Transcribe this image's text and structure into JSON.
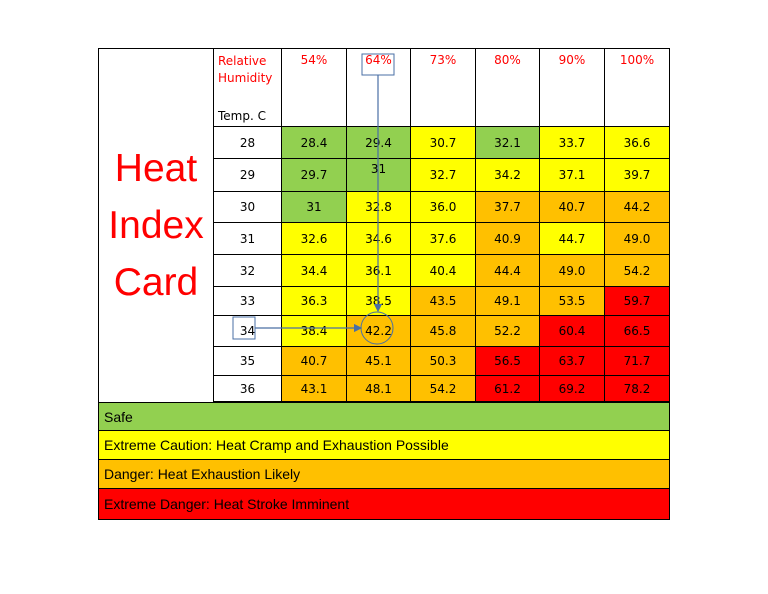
{
  "title_lines": [
    "Heat",
    "Index",
    "Card"
  ],
  "rh_label_lines": [
    "Relative",
    "Humidity"
  ],
  "temp_label": "Temp. C",
  "humidities": [
    "54%",
    "64%",
    "73%",
    "80%",
    "90%",
    "100%"
  ],
  "temps": [
    "28",
    "29",
    "30",
    "31",
    "32",
    "33",
    "34",
    "35",
    "36"
  ],
  "grid": [
    [
      {
        "v": "28.4",
        "c": "g"
      },
      {
        "v": "29.4",
        "c": "g"
      },
      {
        "v": "30.7",
        "c": "y"
      },
      {
        "v": "32.1",
        "c": "g"
      },
      {
        "v": "33.7",
        "c": "y"
      },
      {
        "v": "36.6",
        "c": "y"
      }
    ],
    [
      {
        "v": "29.7",
        "c": "g"
      },
      {
        "v": "31",
        "c": "g"
      },
      {
        "v": "32.7",
        "c": "y"
      },
      {
        "v": "34.2",
        "c": "y"
      },
      {
        "v": "37.1",
        "c": "y"
      },
      {
        "v": "39.7",
        "c": "y"
      }
    ],
    [
      {
        "v": "31",
        "c": "g"
      },
      {
        "v": "32.8",
        "c": "y"
      },
      {
        "v": "36.0",
        "c": "y"
      },
      {
        "v": "37.7",
        "c": "o"
      },
      {
        "v": "40.7",
        "c": "o"
      },
      {
        "v": "44.2",
        "c": "o"
      }
    ],
    [
      {
        "v": "32.6",
        "c": "y"
      },
      {
        "v": "34.6",
        "c": "y"
      },
      {
        "v": "37.6",
        "c": "y"
      },
      {
        "v": "40.9",
        "c": "o"
      },
      {
        "v": "44.7",
        "c": "y"
      },
      {
        "v": "49.0",
        "c": "o"
      }
    ],
    [
      {
        "v": "34.4",
        "c": "y"
      },
      {
        "v": "36.1",
        "c": "y"
      },
      {
        "v": "40.4",
        "c": "y"
      },
      {
        "v": "44.4",
        "c": "o"
      },
      {
        "v": "49.0",
        "c": "o"
      },
      {
        "v": "54.2",
        "c": "o"
      }
    ],
    [
      {
        "v": "36.3",
        "c": "y"
      },
      {
        "v": "38.5",
        "c": "y"
      },
      {
        "v": "43.5",
        "c": "o"
      },
      {
        "v": "49.1",
        "c": "o"
      },
      {
        "v": "53.5",
        "c": "o"
      },
      {
        "v": "59.7",
        "c": "r"
      }
    ],
    [
      {
        "v": "38.4",
        "c": "y"
      },
      {
        "v": "42.2",
        "c": "o"
      },
      {
        "v": "45.8",
        "c": "o"
      },
      {
        "v": "52.2",
        "c": "o"
      },
      {
        "v": "60.4",
        "c": "r"
      },
      {
        "v": "66.5",
        "c": "r"
      }
    ],
    [
      {
        "v": "40.7",
        "c": "o"
      },
      {
        "v": "45.1",
        "c": "o"
      },
      {
        "v": "50.3",
        "c": "o"
      },
      {
        "v": "56.5",
        "c": "r"
      },
      {
        "v": "63.7",
        "c": "r"
      },
      {
        "v": "71.7",
        "c": "r"
      }
    ],
    [
      {
        "v": "43.1",
        "c": "o"
      },
      {
        "v": "48.1",
        "c": "o"
      },
      {
        "v": "54.2",
        "c": "o"
      },
      {
        "v": "61.2",
        "c": "r"
      },
      {
        "v": "69.2",
        "c": "r"
      },
      {
        "v": "78.2",
        "c": "r"
      }
    ]
  ],
  "legend": [
    {
      "label": "Safe",
      "c": "g"
    },
    {
      "label": "Extreme Caution:  Heat Cramp and Exhaustion Possible",
      "c": "y"
    },
    {
      "label": "Danger: Heat Exhaustion Likely",
      "c": "o"
    },
    {
      "label": "Extreme Danger: Heat Stroke Imminent",
      "c": "r"
    }
  ],
  "colors": {
    "g": "#92d050",
    "y": "#ffff00",
    "o": "#ffc000",
    "r": "#ff0000",
    "title": "#ff0000",
    "arrow": "#4a6fa5"
  },
  "highlight": {
    "humidity": "64%",
    "temp": "34",
    "value": "42.2"
  }
}
